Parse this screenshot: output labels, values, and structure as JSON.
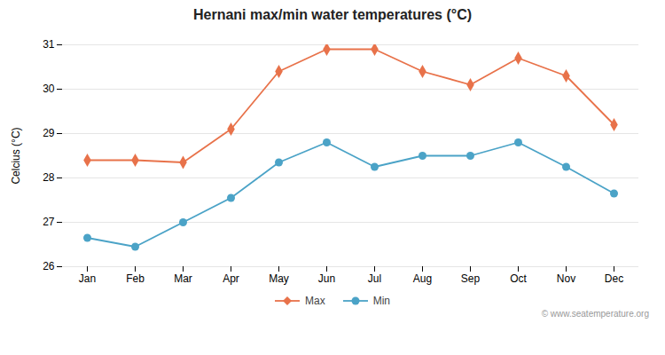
{
  "chart_data": {
    "type": "line",
    "title": "Hernani max/min water temperatures (°C)",
    "ylabel": "Celcius (°C)",
    "annotation": "© www.seatemperature.org",
    "categories": [
      "Jan",
      "Feb",
      "Mar",
      "Apr",
      "May",
      "Jun",
      "Jul",
      "Aug",
      "Sep",
      "Oct",
      "Nov",
      "Dec"
    ],
    "series": [
      {
        "name": "Max",
        "color": "#e8724a",
        "marker": "diamond",
        "values": [
          28.4,
          28.4,
          28.35,
          29.1,
          30.4,
          30.9,
          30.9,
          30.4,
          30.1,
          30.7,
          30.3,
          29.2
        ]
      },
      {
        "name": "Min",
        "color": "#4ba3c7",
        "marker": "circle",
        "values": [
          26.65,
          26.45,
          27.0,
          27.55,
          28.35,
          28.8,
          28.25,
          28.5,
          28.5,
          28.8,
          28.25,
          27.65
        ]
      }
    ],
    "ylim": [
      26,
      31
    ],
    "yticks": [
      26,
      27,
      28,
      29,
      30,
      31
    ],
    "grid": true,
    "legend": "bottom"
  }
}
